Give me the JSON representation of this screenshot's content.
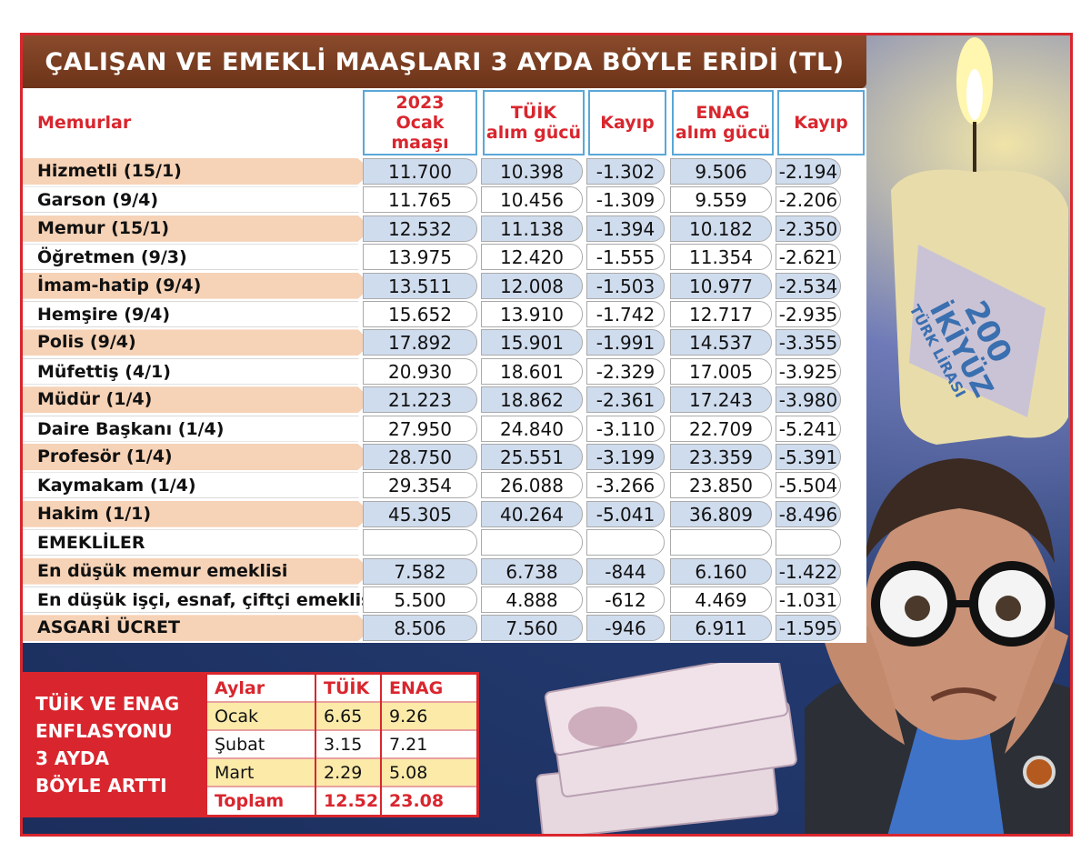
{
  "title": "ÇALIŞAN VE EMEKLİ MAAŞLARI 3 AYDA BÖYLE ERİDİ (TL)",
  "colors": {
    "accent_red": "#d9262e",
    "title_brown": "#7a3d21",
    "row_orange": "#f6d2b6",
    "cell_blue": "#cfdcee",
    "header_border": "#5aa7d8"
  },
  "chart_data": {
    "type": "table",
    "columns": [
      "Memurlar",
      "2023\nOcak maaşı",
      "TÜİK\nalım gücü",
      "Kayıp",
      "ENAG\nalım gücü",
      "Kayıp"
    ],
    "column_lines": [
      [
        "Memurlar"
      ],
      [
        "2023",
        "Ocak maaşı"
      ],
      [
        "TÜİK",
        "alım gücü"
      ],
      [
        "Kayıp"
      ],
      [
        "ENAG",
        "alım gücü"
      ],
      [
        "Kayıp"
      ]
    ],
    "rows": [
      [
        "Hizmetli (15/1)",
        "11.700",
        "10.398",
        "-1.302",
        "9.506",
        "-2.194"
      ],
      [
        "Garson (9/4)",
        "11.765",
        "10.456",
        "-1.309",
        "9.559",
        "-2.206"
      ],
      [
        "Memur (15/1)",
        "12.532",
        "11.138",
        "-1.394",
        "10.182",
        "-2.350"
      ],
      [
        "Öğretmen (9/3)",
        "13.975",
        "12.420",
        "-1.555",
        "11.354",
        "-2.621"
      ],
      [
        "İmam-hatip (9/4)",
        "13.511",
        "12.008",
        "-1.503",
        "10.977",
        "-2.534"
      ],
      [
        "Hemşire (9/4)",
        "15.652",
        "13.910",
        "-1.742",
        "12.717",
        "-2.935"
      ],
      [
        "Polis (9/4)",
        "17.892",
        "15.901",
        "-1.991",
        "14.537",
        "-3.355"
      ],
      [
        "Müfettiş (4/1)",
        "20.930",
        "18.601",
        "-2.329",
        "17.005",
        "-3.925"
      ],
      [
        "Müdür (1/4)",
        "21.223",
        "18.862",
        "-2.361",
        "17.243",
        "-3.980"
      ],
      [
        "Daire Başkanı (1/4)",
        "27.950",
        "24.840",
        "-3.110",
        "22.709",
        "-5.241"
      ],
      [
        "Profesör (1/4)",
        "28.750",
        "25.551",
        "-3.199",
        "23.359",
        "-5.391"
      ],
      [
        "Kaymakam (1/4)",
        "29.354",
        "26.088",
        "-3.266",
        "23.850",
        "-5.504"
      ],
      [
        "Hakim (1/1)",
        "45.305",
        "40.264",
        "-5.041",
        "36.809",
        "-8.496"
      ],
      [
        "EMEKLİLER",
        "",
        "",
        "",
        "",
        ""
      ],
      [
        "En düşük memur emeklisi",
        "7.582",
        "6.738",
        "-844",
        "6.160",
        "-1.422"
      ],
      [
        "En düşük işçi, esnaf, çiftçi emeklisi",
        "5.500",
        "4.888",
        "-612",
        "4.469",
        "-1.031"
      ],
      [
        "ASGARİ ÜCRET",
        "8.506",
        "7.560",
        "-946",
        "6.911",
        "-1.595"
      ]
    ]
  },
  "inflation": {
    "label_lines": [
      "TÜİK VE ENAG",
      "ENFLASYONU",
      "3 AYDA",
      "BÖYLE ARTTI"
    ],
    "columns": [
      "Aylar",
      "TÜİK",
      "ENAG"
    ],
    "rows": [
      [
        "Ocak",
        "6.65",
        "9.26"
      ],
      [
        "Şubat",
        "3.15",
        "7.21"
      ],
      [
        "Mart",
        "2.29",
        "5.08"
      ]
    ],
    "total": [
      "Toplam",
      "12.52",
      "23.08"
    ]
  },
  "illustration": {
    "banknote_text": [
      "200",
      "İKİYÜZ",
      "TÜRK LİRASI"
    ],
    "icons": [
      "candle-icon",
      "money-stack-icon",
      "worried-man-icon"
    ]
  }
}
